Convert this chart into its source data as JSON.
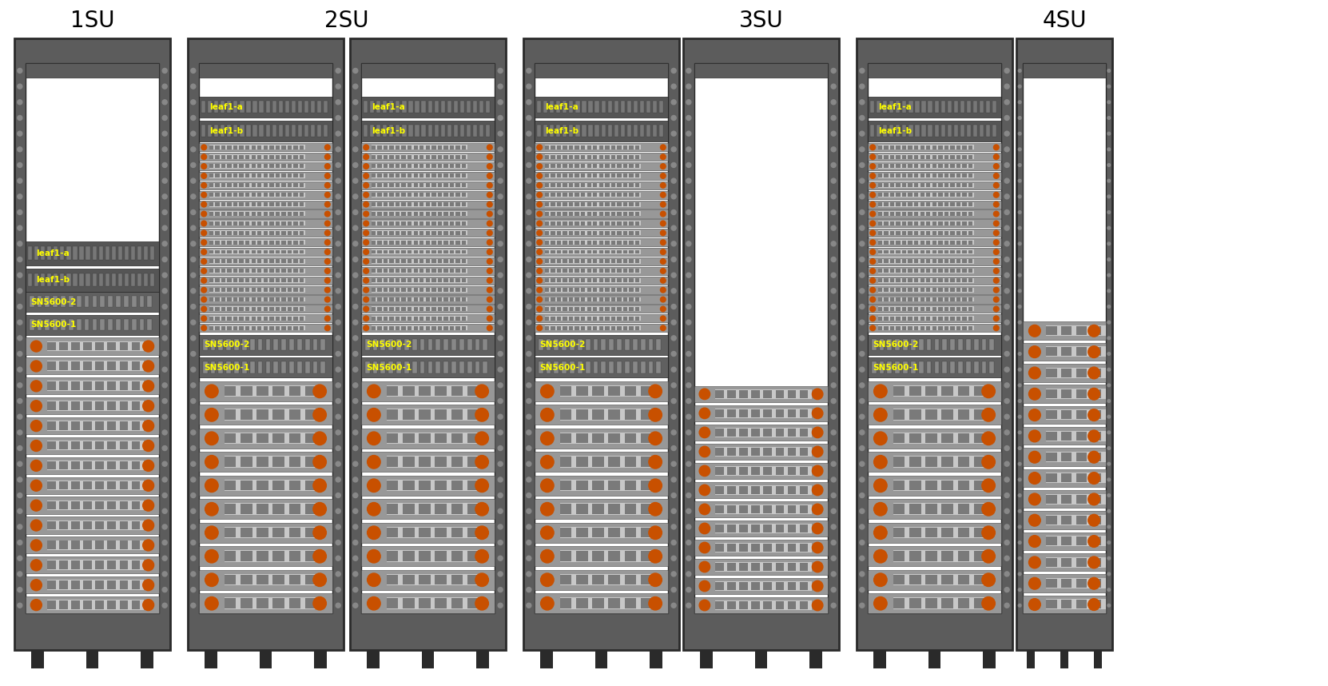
{
  "bg": "#ffffff",
  "rack_outer": "#5c5c5c",
  "rack_edge": "#2a2a2a",
  "rack_inner_bg": "#ffffff",
  "rail_color": "#888888",
  "server_body": "#989898",
  "server_light": "#c8c8c8",
  "server_dark": "#6a6a6a",
  "server_port": "#7a7a7a",
  "orange": "#c85000",
  "switch_body": "#555555",
  "switch_port": "#777777",
  "sn5600_body": "#606060",
  "yellow": "#ffff00",
  "foot_color": "#2a2a2a",
  "top_bar_color": "#5c5c5c",
  "title_fontsize": 20,
  "label_fontsize": 7,
  "su_labels": [
    "1SU",
    "2SU",
    "3SU",
    "4SU"
  ]
}
